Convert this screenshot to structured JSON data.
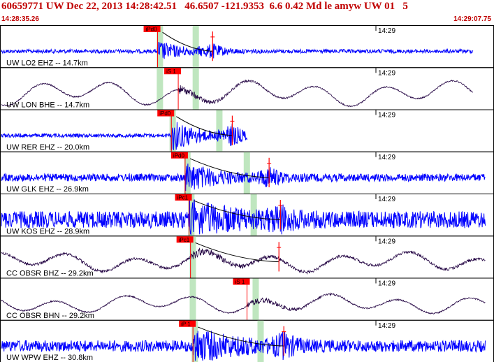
{
  "header": {
    "title": "60659771 UW Dec 22, 2013 14:28:42.51   46.6507 -121.9353  6.6 0.42 Md le amyw UW 01   5",
    "start_time": "14:28:35.26",
    "end_time": "14:29:07.75"
  },
  "time_tick_label": "14:29",
  "colors": {
    "header_text": "#c00000",
    "trace_blue": "#0000ff",
    "trace_dark": "#200040",
    "pick_box": "#ff0000",
    "window": "#bfe6bf",
    "grid": "#000000"
  },
  "channels": [
    {
      "label": "UW LO2 EHZ -- 14.7km",
      "pick": "iPd0",
      "color": "blue",
      "type": "hf",
      "amp": 0.25,
      "noise": 0.05,
      "onset": 0.318,
      "win1": 0.322,
      "win2": 0.395,
      "s_pick": 0.43,
      "end": 0.96,
      "decay": 0.05
    },
    {
      "label": "UW LON BHE -- 14.7km",
      "pick": "iS 1",
      "color": "dark",
      "type": "lf",
      "amp": 0.35,
      "noise": 0.02,
      "onset": 0.36,
      "win1": 0.322,
      "win2": 0.395,
      "s_pick": 0.0,
      "end": 0.96,
      "decay": 0.06
    },
    {
      "label": "UW RER EHZ -- 20.0km",
      "pick": "iPd0",
      "color": "blue",
      "type": "hf",
      "amp": 0.42,
      "noise": 0.05,
      "onset": 0.346,
      "win1": 0.348,
      "win2": 0.443,
      "s_pick": 0.47,
      "end": 0.5,
      "decay": 0.05
    },
    {
      "label": "UW GLK EHZ -- 26.9km",
      "pick": "iPd0",
      "color": "blue",
      "type": "hf",
      "amp": 0.35,
      "noise": 0.1,
      "onset": 0.374,
      "win1": 0.378,
      "win2": 0.499,
      "s_pick": 0.545,
      "end": 0.985,
      "decay": 0.06
    },
    {
      "label": "UW KOS EHZ -- 28.9km",
      "pick": "iPc1",
      "color": "blue",
      "type": "hf",
      "amp": 0.38,
      "noise": 0.22,
      "onset": 0.382,
      "win1": 0.386,
      "win2": 0.513,
      "s_pick": 0.568,
      "end": 0.985,
      "decay": 0.08
    },
    {
      "label": "CC OBSR BHZ -- 29.2km",
      "pick": "iPc1",
      "color": "dark",
      "type": "lf",
      "amp": 0.28,
      "noise": 0.04,
      "onset": 0.385,
      "win1": 0.389,
      "win2": 0.0,
      "s_pick": 0.565,
      "end": 0.985,
      "decay": 0.08
    },
    {
      "label": "CC OBSR BHN -- 29.2km",
      "pick": "iS 1",
      "color": "dark",
      "type": "lf",
      "amp": 0.26,
      "noise": 0.02,
      "onset": 0.5,
      "win1": 0.389,
      "win2": 0.517,
      "s_pick": 0.0,
      "end": 0.985,
      "decay": 0.08
    },
    {
      "label": "UW WPW EHZ -- 30.8km",
      "pick": "iP 1",
      "color": "blue",
      "type": "hf",
      "amp": 0.4,
      "noise": 0.15,
      "onset": 0.39,
      "win1": 0.393,
      "win2": 0.527,
      "s_pick": 0.575,
      "end": 0.985,
      "decay": 0.08
    }
  ]
}
